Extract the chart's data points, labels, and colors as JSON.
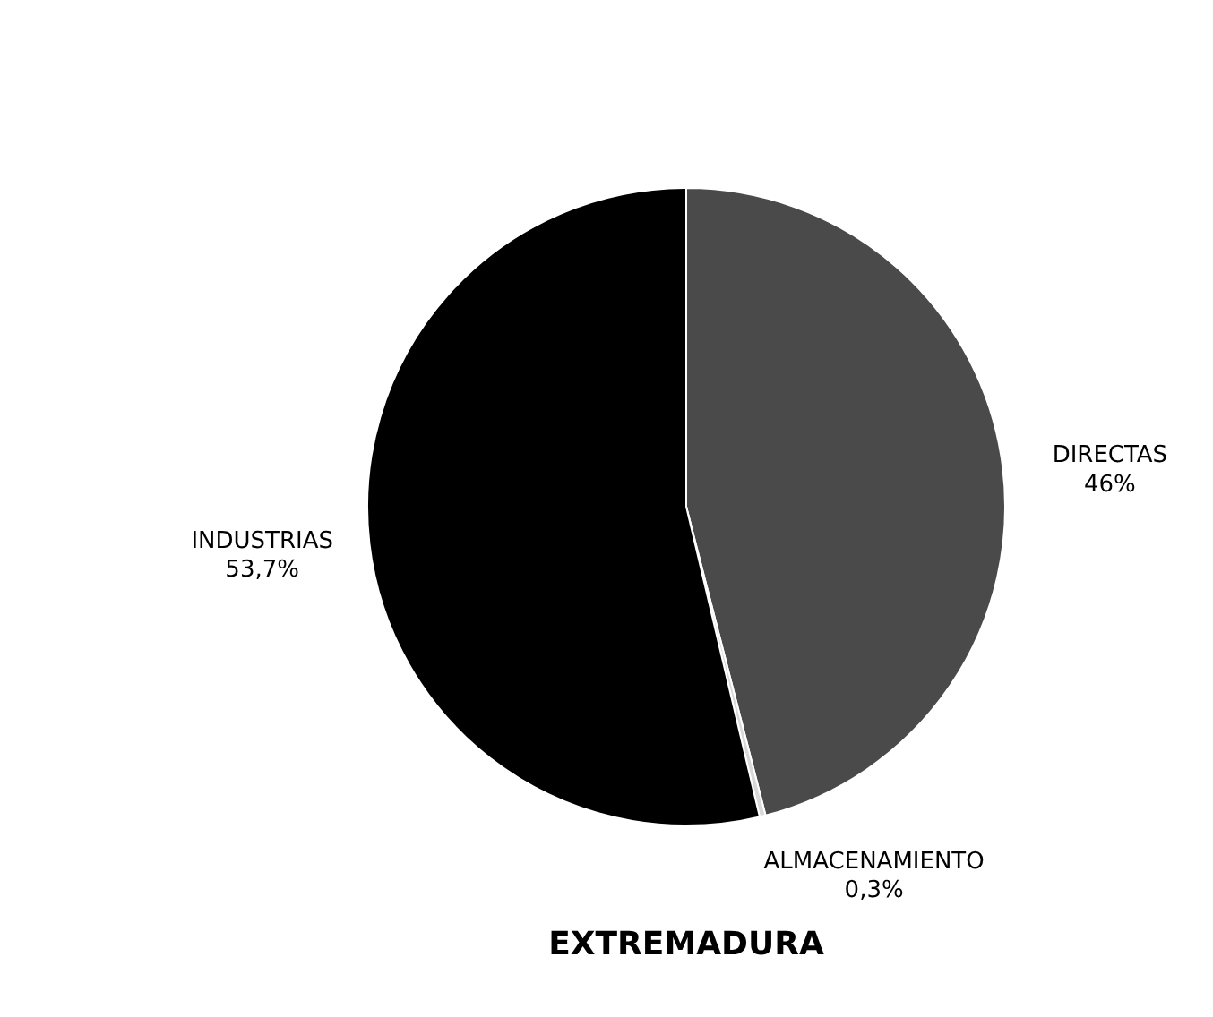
{
  "chart_data": {
    "type": "pie",
    "title": "EXTREMADURA",
    "categories": [
      "DIRECTAS",
      "ALMACENAMIENTO",
      "INDUSTRIAS"
    ],
    "values": [
      46,
      0.3,
      53.7
    ],
    "colors": [
      "#4a4a4a",
      "#d9d9d9",
      "#000000"
    ],
    "value_labels": [
      "46%",
      "0,3%",
      "53,7%"
    ]
  }
}
